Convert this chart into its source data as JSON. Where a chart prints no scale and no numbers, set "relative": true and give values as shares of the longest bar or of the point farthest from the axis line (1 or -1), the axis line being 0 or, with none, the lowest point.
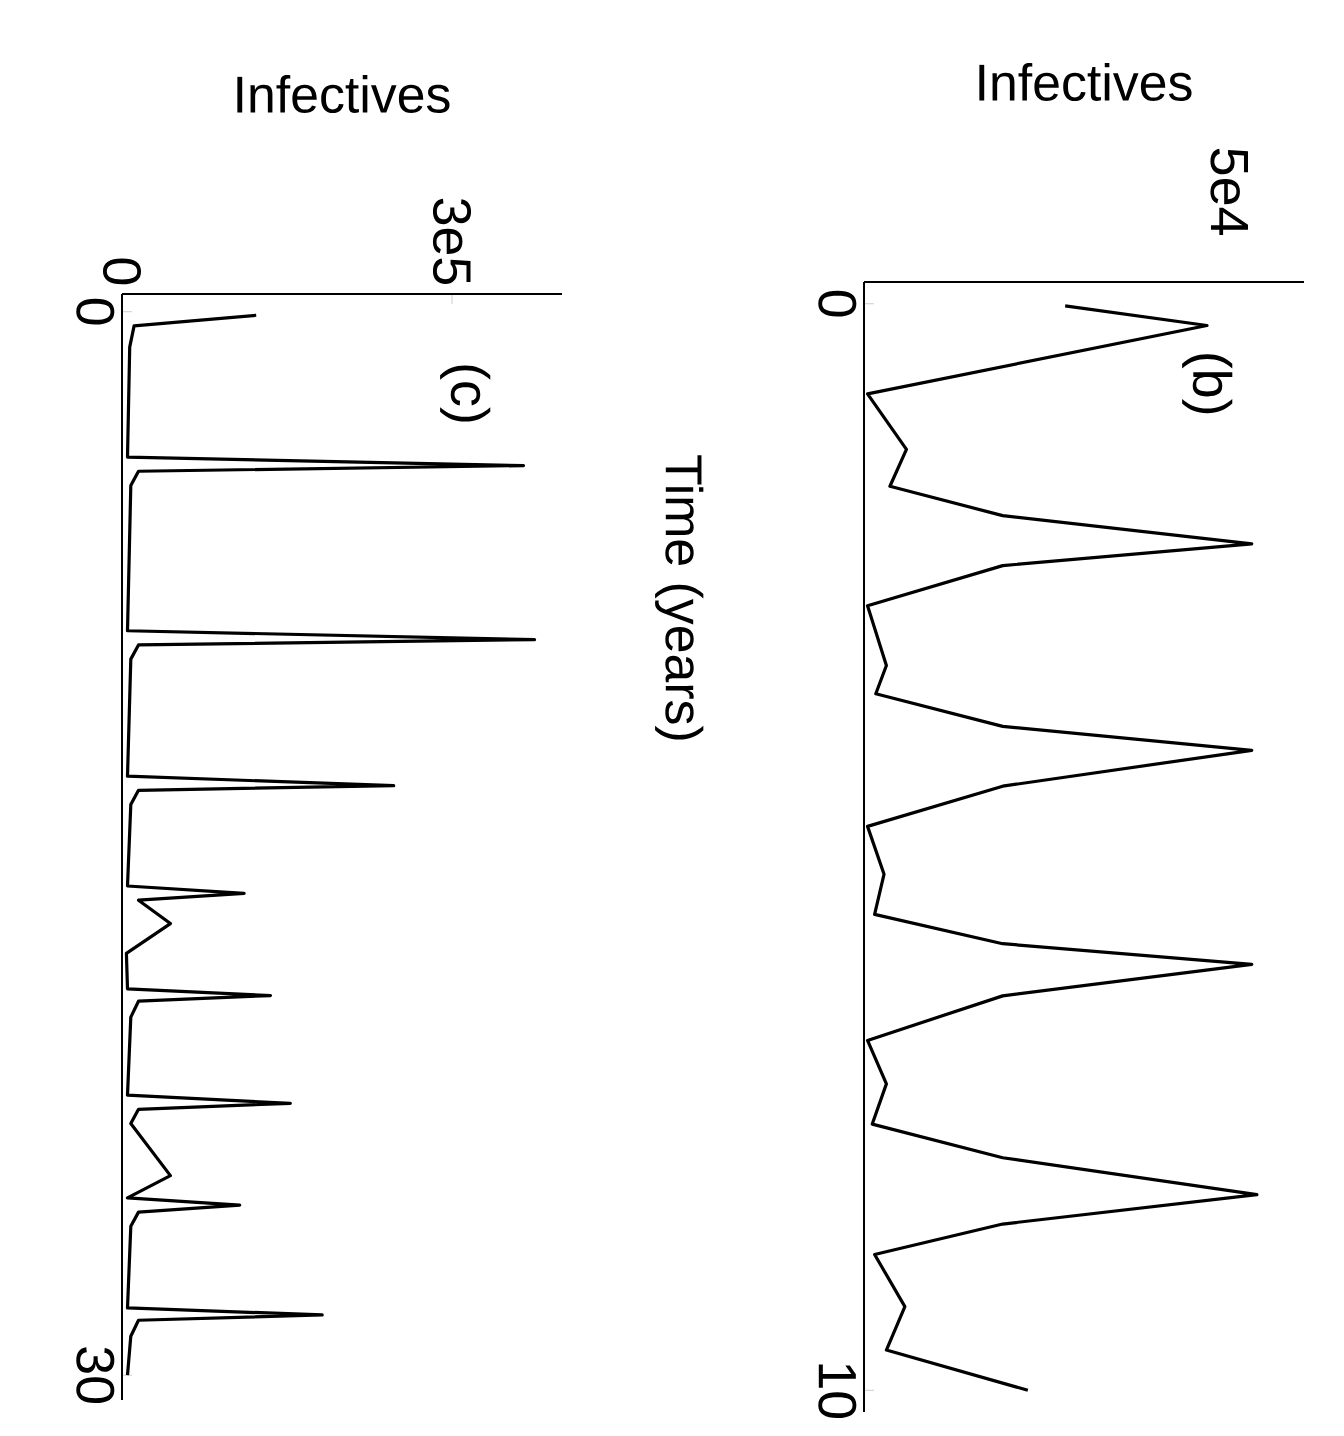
{
  "chart_data": [
    {
      "type": "line",
      "orientation": "horizontal",
      "relative": true,
      "xlabel": "Infectives",
      "ylabel": "Time (years)",
      "annotations": [
        "(b)",
        "5e4"
      ],
      "color": "#000000",
      "x": [
        0.02,
        0.2,
        0.83,
        1.34,
        1.68,
        1.95,
        2.21,
        2.41,
        2.78,
        3.33,
        3.59,
        3.89,
        4.11,
        4.44,
        4.81,
        5.25,
        5.62,
        5.89,
        6.08,
        6.37,
        6.78,
        7.18,
        7.55,
        7.86,
        8.2,
        8.47,
        8.75,
        9.23,
        9.63,
        10
      ],
      "values": [
        0.512,
        0.873,
        0.009,
        0.108,
        0.066,
        0.353,
        0.987,
        0.353,
        0.009,
        0.057,
        0.03,
        0.353,
        0.987,
        0.353,
        0.009,
        0.051,
        0.027,
        0.353,
        0.987,
        0.353,
        0.009,
        0.057,
        0.021,
        0.353,
        1,
        0.353,
        0.027,
        0.104,
        0.057,
        0.417
      ],
      "ylim": [
        10.2,
        -0.2
      ],
      "yticks": [
        0,
        10
      ]
    },
    {
      "type": "line",
      "orientation": "horizontal",
      "xlabel": "Infectives",
      "annotations": [
        "(c)"
      ],
      "color": "#000000",
      "x": [
        0.1,
        0.4,
        1,
        4.1,
        4.34,
        4.5,
        4.9,
        9.0,
        9.25,
        9.4,
        9.8,
        13.1,
        13.37,
        13.5,
        13.9,
        16.2,
        16.41,
        16.6,
        17.26,
        18.1,
        19.1,
        19.29,
        19.45,
        19.9,
        22.1,
        22.33,
        22.5,
        22.9,
        24.37,
        25.0,
        25.2,
        25.4,
        25.8,
        28.1,
        28.3,
        28.45,
        28.9,
        30
      ],
      "values": [
        122000,
        11000,
        7000,
        5000,
        365000,
        15000,
        8000,
        5000,
        375000,
        15000,
        8000,
        5000,
        247000,
        15000,
        8000,
        5000,
        111000,
        15000,
        44000,
        4000,
        5000,
        135000,
        15000,
        8000,
        5000,
        153000,
        15000,
        8000,
        44000,
        5000,
        107000,
        15000,
        8000,
        5000,
        182000,
        15000,
        8000,
        5000
      ],
      "xlim": [
        0,
        400000
      ],
      "xticks": [
        0,
        {
          "value": 300000,
          "label": "3e5"
        }
      ],
      "ylim": [
        30.7,
        -0.5
      ],
      "yticks": [
        0,
        30
      ]
    }
  ]
}
